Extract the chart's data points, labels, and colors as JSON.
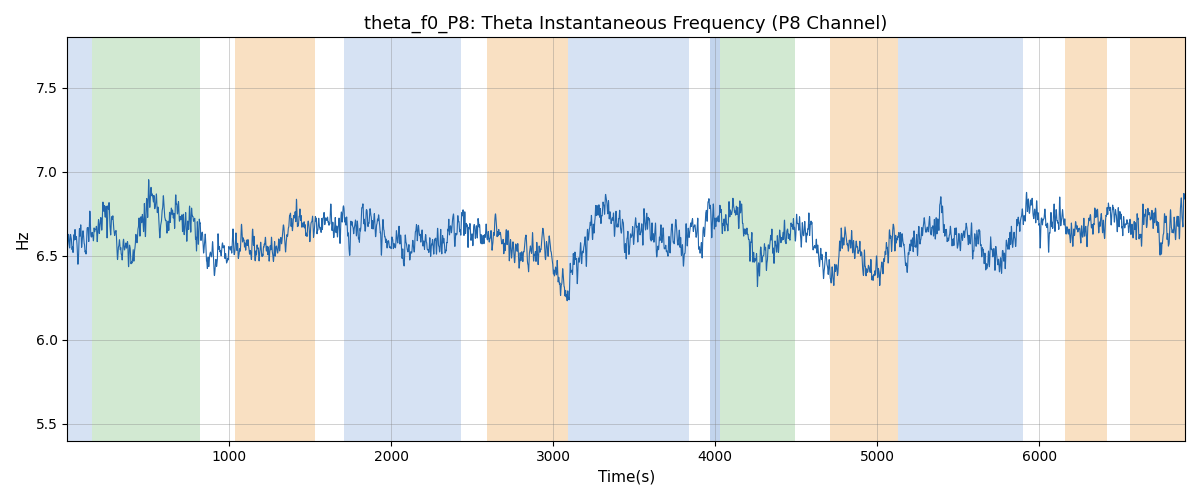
{
  "title": "theta_f0_P8: Theta Instantaneous Frequency (P8 Channel)",
  "xlabel": "Time(s)",
  "ylabel": "Hz",
  "xlim": [
    0,
    6900
  ],
  "ylim": [
    5.4,
    7.8
  ],
  "line_color": "#2166ac",
  "line_width": 0.8,
  "background_color": "#ffffff",
  "grid": true,
  "figsize": [
    12,
    5
  ],
  "dpi": 100,
  "bands": [
    {
      "xmin": 0,
      "xmax": 155,
      "color": "#aec6e8",
      "alpha": 0.5
    },
    {
      "xmin": 155,
      "xmax": 820,
      "color": "#90c990",
      "alpha": 0.4
    },
    {
      "xmin": 820,
      "xmax": 1035,
      "color": "#ffffff",
      "alpha": 0.0
    },
    {
      "xmin": 1035,
      "xmax": 1530,
      "color": "#f5c890",
      "alpha": 0.55
    },
    {
      "xmin": 1530,
      "xmax": 1710,
      "color": "#ffffff",
      "alpha": 0.0
    },
    {
      "xmin": 1710,
      "xmax": 2430,
      "color": "#aec6e8",
      "alpha": 0.5
    },
    {
      "xmin": 2430,
      "xmax": 2590,
      "color": "#ffffff",
      "alpha": 0.0
    },
    {
      "xmin": 2590,
      "xmax": 3090,
      "color": "#f5c890",
      "alpha": 0.55
    },
    {
      "xmin": 3090,
      "xmax": 3840,
      "color": "#aec6e8",
      "alpha": 0.5
    },
    {
      "xmin": 3840,
      "xmax": 3970,
      "color": "#ffffff",
      "alpha": 0.0
    },
    {
      "xmin": 3970,
      "xmax": 4030,
      "color": "#aec6e8",
      "alpha": 0.75
    },
    {
      "xmin": 4030,
      "xmax": 4490,
      "color": "#90c990",
      "alpha": 0.4
    },
    {
      "xmin": 4490,
      "xmax": 4710,
      "color": "#ffffff",
      "alpha": 0.0
    },
    {
      "xmin": 4710,
      "xmax": 5130,
      "color": "#f5c890",
      "alpha": 0.55
    },
    {
      "xmin": 5130,
      "xmax": 5900,
      "color": "#aec6e8",
      "alpha": 0.5
    },
    {
      "xmin": 5900,
      "xmax": 6160,
      "color": "#ffffff",
      "alpha": 0.0
    },
    {
      "xmin": 6160,
      "xmax": 6420,
      "color": "#f5c890",
      "alpha": 0.55
    },
    {
      "xmin": 6420,
      "xmax": 6560,
      "color": "#ffffff",
      "alpha": 0.0
    },
    {
      "xmin": 6560,
      "xmax": 6900,
      "color": "#f5c890",
      "alpha": 0.55
    }
  ],
  "seed": 2023,
  "n_points": 6800,
  "mean_freq": 6.65
}
